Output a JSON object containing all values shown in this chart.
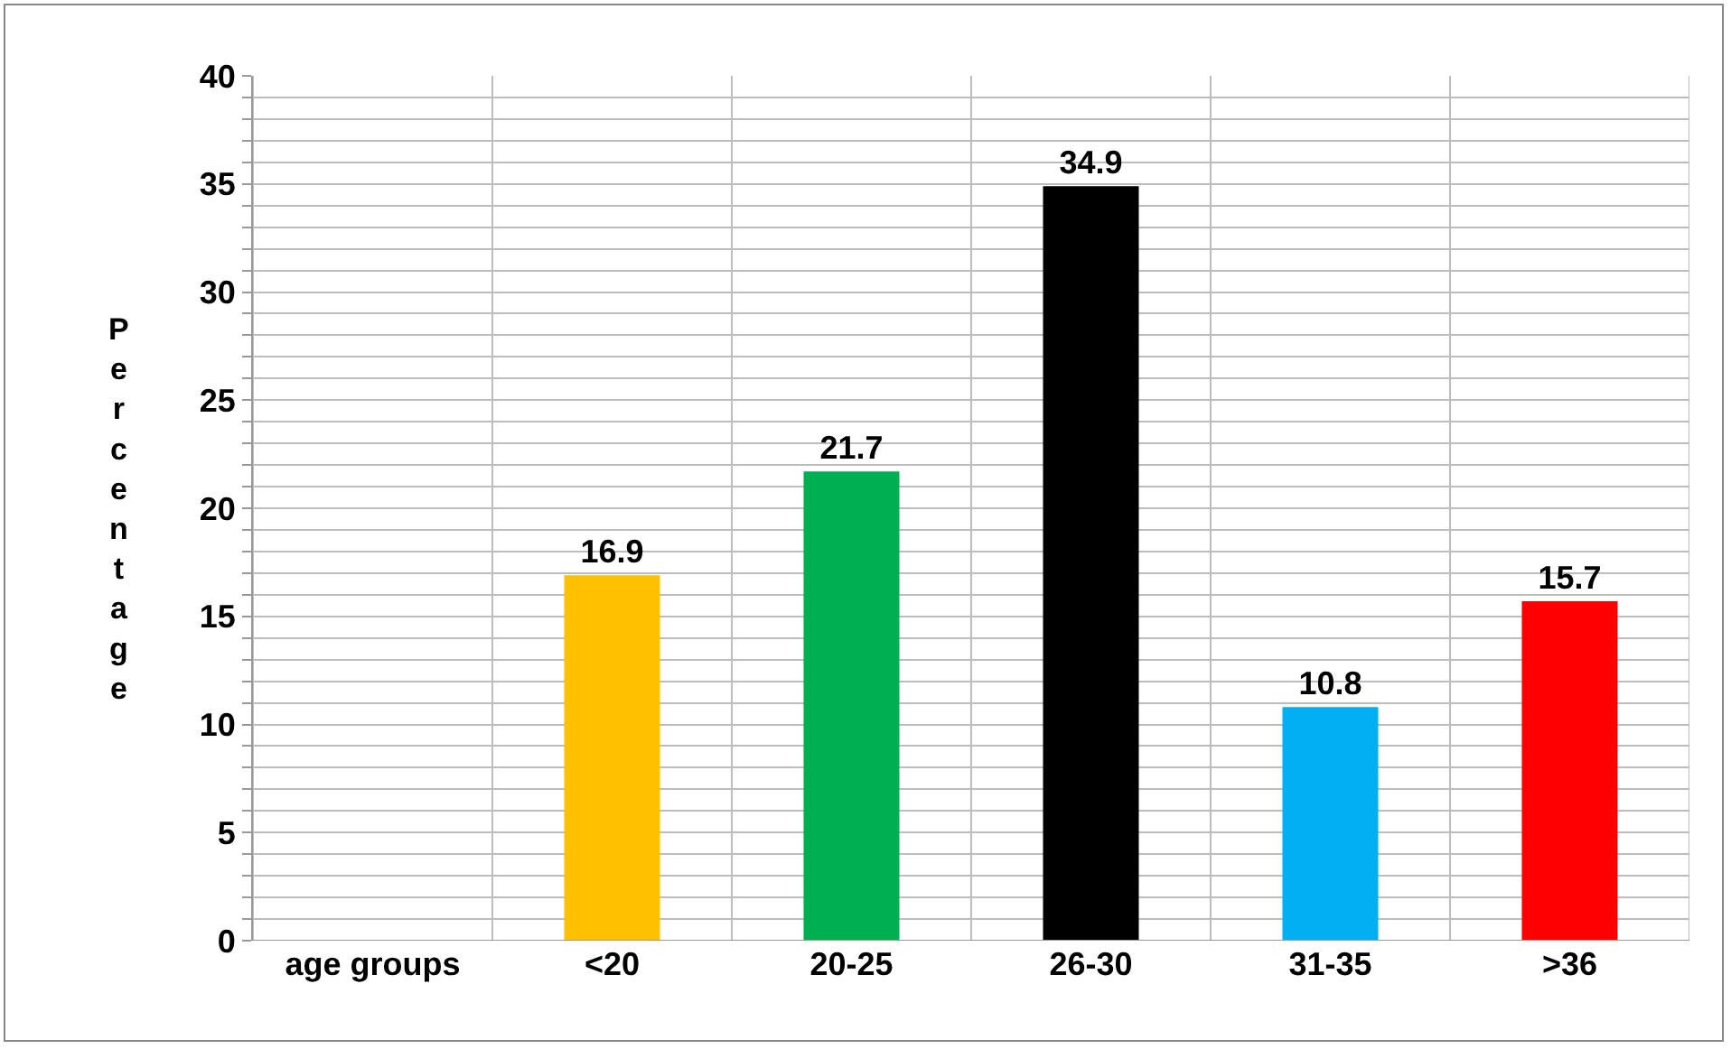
{
  "chart_data": {
    "type": "bar",
    "ylabel": "Percentage",
    "categories": [
      "age groups",
      "<20",
      "20-25",
      "26-30",
      "31-35",
      ">36"
    ],
    "values": [
      null,
      16.9,
      21.7,
      34.9,
      10.8,
      15.7
    ],
    "colors": [
      null,
      "#ffc000",
      "#00b050",
      "#000000",
      "#00b0f0",
      "#ff0000"
    ],
    "data_labels": true,
    "grid": true,
    "ylim": [
      0,
      40
    ],
    "yticks": [
      0,
      {
        "value": 1,
        "label": null
      },
      {
        "value": 2,
        "label": null
      },
      {
        "value": 3,
        "label": null
      },
      {
        "value": 4,
        "label": null
      },
      5,
      {
        "value": 6,
        "label": null
      },
      {
        "value": 7,
        "label": null
      },
      {
        "value": 8,
        "label": null
      },
      {
        "value": 9,
        "label": null
      },
      10,
      {
        "value": 11,
        "label": null
      },
      {
        "value": 12,
        "label": null
      },
      {
        "value": 13,
        "label": null
      },
      {
        "value": 14,
        "label": null
      },
      15,
      {
        "value": 16,
        "label": null
      },
      {
        "value": 17,
        "label": null
      },
      {
        "value": 18,
        "label": null
      },
      {
        "value": 19,
        "label": null
      },
      20,
      {
        "value": 21,
        "label": null
      },
      {
        "value": 22,
        "label": null
      },
      {
        "value": 23,
        "label": null
      },
      {
        "value": 24,
        "label": null
      },
      25,
      {
        "value": 26,
        "label": null
      },
      {
        "value": 27,
        "label": null
      },
      {
        "value": 28,
        "label": null
      },
      {
        "value": 29,
        "label": null
      },
      30,
      {
        "value": 31,
        "label": null
      },
      {
        "value": 32,
        "label": null
      },
      {
        "value": 33,
        "label": null
      },
      {
        "value": 34,
        "label": null
      },
      35,
      {
        "value": 36,
        "label": null
      },
      {
        "value": 37,
        "label": null
      },
      {
        "value": 38,
        "label": null
      },
      {
        "value": 39,
        "label": null
      },
      40
    ]
  }
}
